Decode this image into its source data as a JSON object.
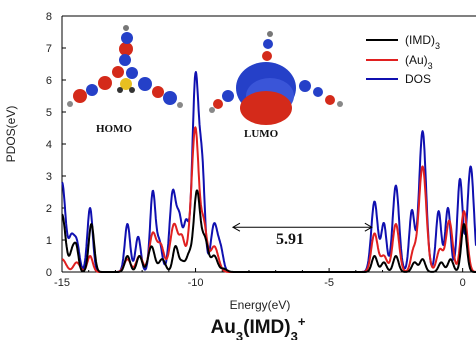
{
  "chart_data": {
    "type": "line",
    "xlabel": "Energy(eV)",
    "ylabel": "PDOS(eV)",
    "xlim": [
      -15,
      0.5
    ],
    "ylim": [
      0,
      8
    ],
    "xticks": [
      -15,
      -10,
      -5,
      0
    ],
    "yticks": [
      0,
      1,
      2,
      3,
      4,
      5,
      6,
      7,
      8
    ],
    "grid": false,
    "legend_position": "top-right",
    "title_parts": {
      "base": "Au",
      "sub1": "3",
      "mid": "(IMD)",
      "sub2": "3",
      "sup": "+"
    },
    "legend": [
      {
        "base": "(IMD)",
        "sub": "3",
        "color": "#000000"
      },
      {
        "base": "(Au)",
        "sub": "3",
        "color": "#e02020"
      },
      {
        "base": "DOS",
        "sub": "",
        "color": "#1010b0"
      }
    ],
    "peaks": {
      "IMD": [
        [
          -15,
          1.8,
          0.13
        ],
        [
          -14.6,
          0.7,
          0.1
        ],
        [
          -14.45,
          0.6,
          0.08
        ],
        [
          -13.9,
          1.5,
          0.1
        ],
        [
          -12.55,
          0.5,
          0.1
        ],
        [
          -12.1,
          0.5,
          0.1
        ],
        [
          -11.65,
          0.8,
          0.12
        ],
        [
          -11.25,
          0.4,
          0.12
        ],
        [
          -10.75,
          0.8,
          0.1
        ],
        [
          -10.5,
          0.3,
          0.1
        ],
        [
          -10.25,
          0.5,
          0.1
        ],
        [
          -9.95,
          2.5,
          0.12
        ],
        [
          -9.65,
          1.0,
          0.12
        ],
        [
          -9.3,
          0.5,
          0.12
        ],
        [
          -8.95,
          0.1,
          0.12
        ],
        [
          -3.3,
          0.5,
          0.1
        ],
        [
          -2.95,
          0.3,
          0.1
        ],
        [
          -2.5,
          0.5,
          0.1
        ],
        [
          -1.8,
          0.3,
          0.1
        ],
        [
          -1.5,
          0.4,
          0.1
        ],
        [
          -0.8,
          0.3,
          0.1
        ],
        [
          -0.45,
          0.4,
          0.1
        ],
        [
          0.05,
          1.5,
          0.1
        ]
      ],
      "Au": [
        [
          -15,
          0.4,
          0.15
        ],
        [
          -14.45,
          0.3,
          0.12
        ],
        [
          -13.95,
          0.5,
          0.1
        ],
        [
          -12.55,
          0.4,
          0.12
        ],
        [
          -12.1,
          0.5,
          0.12
        ],
        [
          -11.6,
          1.2,
          0.13
        ],
        [
          -11.3,
          0.8,
          0.12
        ],
        [
          -10.8,
          1.5,
          0.15
        ],
        [
          -10.5,
          0.9,
          0.1
        ],
        [
          -10.2,
          1.0,
          0.12
        ],
        [
          -10.0,
          4.2,
          0.12
        ],
        [
          -9.7,
          1.5,
          0.12
        ],
        [
          -9.3,
          0.8,
          0.15
        ],
        [
          -3.3,
          1.2,
          0.12
        ],
        [
          -2.95,
          0.5,
          0.12
        ],
        [
          -2.5,
          1.5,
          0.12
        ],
        [
          -1.85,
          0.6,
          0.1
        ],
        [
          -1.5,
          3.3,
          0.14
        ],
        [
          -0.85,
          0.7,
          0.12
        ],
        [
          -0.5,
          1.6,
          0.12
        ],
        [
          0.05,
          1.9,
          0.12
        ]
      ],
      "DOS": [
        [
          -15,
          2.8,
          0.13
        ],
        [
          -14.65,
          1.0,
          0.1
        ],
        [
          -14.45,
          0.9,
          0.1
        ],
        [
          -13.95,
          2.0,
          0.1
        ],
        [
          -12.55,
          1.5,
          0.1
        ],
        [
          -12.15,
          1.1,
          0.1
        ],
        [
          -11.6,
          2.5,
          0.1
        ],
        [
          -11.35,
          0.9,
          0.1
        ],
        [
          -10.85,
          2.5,
          0.12
        ],
        [
          -10.6,
          1.5,
          0.1
        ],
        [
          -10.35,
          1.5,
          0.1
        ],
        [
          -10.0,
          6.1,
          0.12
        ],
        [
          -9.75,
          3.0,
          0.1
        ],
        [
          -9.3,
          1.5,
          0.13
        ],
        [
          -9.05,
          0.6,
          0.1
        ],
        [
          -3.3,
          2.2,
          0.12
        ],
        [
          -2.95,
          1.5,
          0.1
        ],
        [
          -2.5,
          2.7,
          0.12
        ],
        [
          -1.9,
          1.9,
          0.1
        ],
        [
          -1.5,
          4.4,
          0.13
        ],
        [
          -0.9,
          1.9,
          0.1
        ],
        [
          -0.55,
          2.0,
          0.1
        ],
        [
          -0.1,
          2.9,
          0.1
        ],
        [
          0.3,
          3.3,
          0.12
        ]
      ]
    },
    "annotation": {
      "text": "5.91",
      "from": -8.6,
      "to": -3.4,
      "y": 1.4
    },
    "insets": [
      {
        "label": "HOMO"
      },
      {
        "label": "LUMO"
      }
    ]
  }
}
